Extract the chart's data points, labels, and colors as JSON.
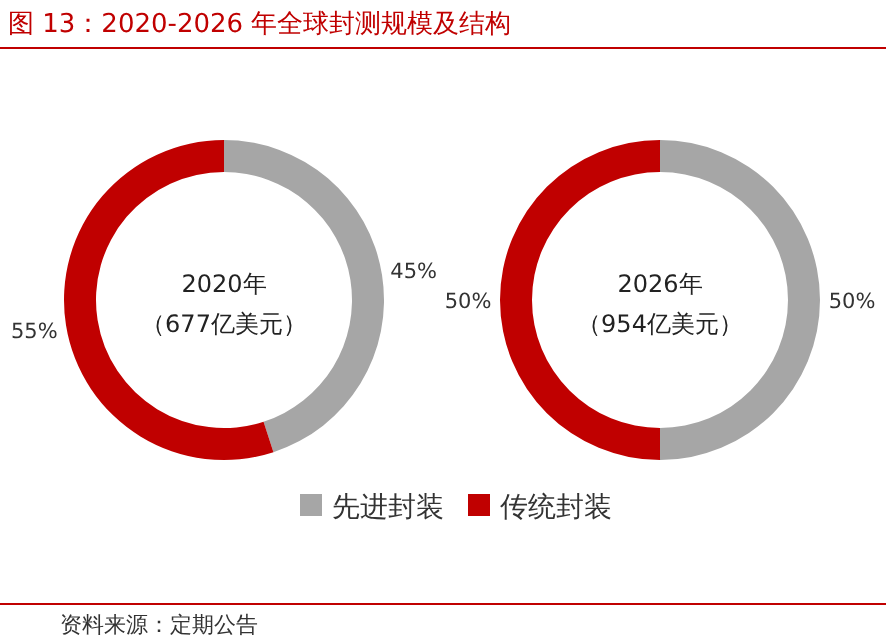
{
  "chart_data": [
    {
      "type": "donut",
      "title": "图 13：2020-2026 年全球封测规模及结构",
      "categories": [
        "先进封装",
        "传统封装"
      ],
      "values": [
        45,
        55
      ],
      "colors": [
        "#a6a6a6",
        "#c00000"
      ],
      "value_labels": [
        "45%",
        "55%"
      ],
      "legend": "bottom",
      "annotations": [
        "2020年",
        "（677亿美元）",
        "资料来源：定期公告"
      ]
    },
    {
      "type": "donut",
      "categories": [
        null,
        null
      ],
      "values": [
        50,
        50
      ],
      "colors": [
        "#a6a6a6",
        "#c00000"
      ],
      "value_labels": [
        "50%",
        "50%"
      ],
      "annotations": [
        "2026年",
        "（954亿美元）"
      ]
    }
  ]
}
